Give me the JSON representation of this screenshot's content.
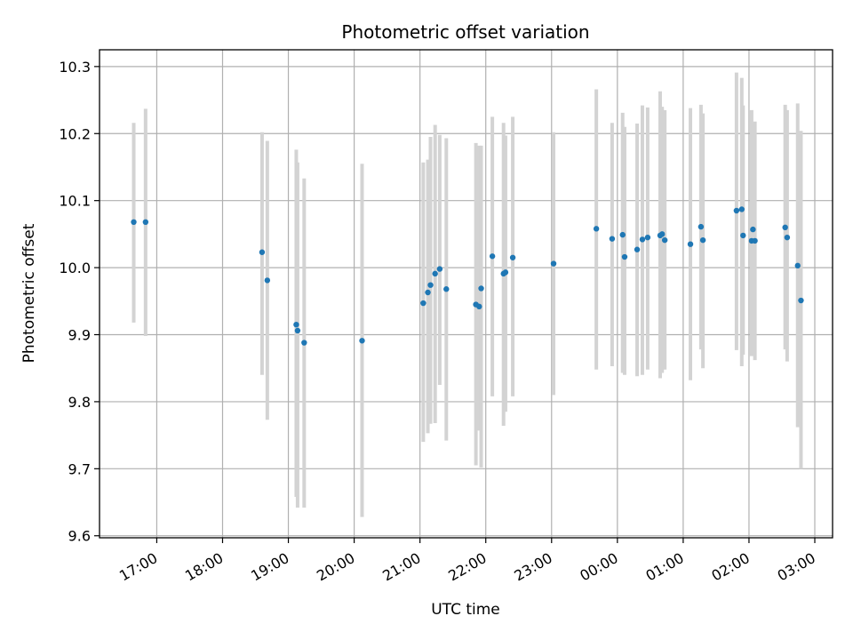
{
  "chart_data": {
    "type": "scatter",
    "title": "Photometric offset variation",
    "xlabel": "UTC time",
    "ylabel": "Photometric offset",
    "x_tick_labels": [
      "17:00",
      "18:00",
      "19:00",
      "20:00",
      "21:00",
      "22:00",
      "23:00",
      "00:00",
      "01:00",
      "02:00",
      "03:00"
    ],
    "x_tick_hours": [
      17,
      18,
      19,
      20,
      21,
      22,
      23,
      24,
      25,
      26,
      27
    ],
    "xlim_hours": [
      16.13,
      27.27
    ],
    "y_tick_labels": [
      "9.6",
      "9.7",
      "9.8",
      "9.9",
      "10.0",
      "10.1",
      "10.2",
      "10.3"
    ],
    "y_ticks": [
      9.6,
      9.7,
      9.8,
      9.9,
      10.0,
      10.1,
      10.2,
      10.3
    ],
    "ylim": [
      9.597,
      10.325
    ],
    "grid": true,
    "point_color": "#1f77b4",
    "errorbar_color": "#d3d3d3",
    "series": [
      {
        "x_hours": [
          16.65,
          16.83,
          18.6,
          18.68,
          19.12,
          19.14,
          19.24,
          20.12,
          21.05,
          21.12,
          21.16,
          21.23,
          21.3,
          21.4,
          21.85,
          21.9,
          21.93,
          22.1,
          22.27,
          22.3,
          22.41,
          23.03,
          23.68,
          23.92,
          24.08,
          24.11,
          24.3,
          24.38,
          24.46,
          24.65,
          24.68,
          24.72,
          25.11,
          25.27,
          25.3,
          25.81,
          25.89,
          25.91,
          26.04,
          26.06,
          26.09,
          26.55,
          26.58,
          26.74,
          26.79
        ],
        "y": [
          10.068,
          10.068,
          10.023,
          9.981,
          9.915,
          9.906,
          9.888,
          9.891,
          9.947,
          9.963,
          9.974,
          9.991,
          9.998,
          9.968,
          9.945,
          9.942,
          9.969,
          10.017,
          9.991,
          9.993,
          10.015,
          10.006,
          10.058,
          10.043,
          10.049,
          10.016,
          10.027,
          10.042,
          10.045,
          10.048,
          10.05,
          10.041,
          10.035,
          10.061,
          10.041,
          10.085,
          10.087,
          10.048,
          10.04,
          10.057,
          10.04,
          10.06,
          10.045,
          10.003,
          9.951
        ],
        "y_err_low": [
          9.918,
          9.898,
          9.84,
          9.773,
          9.658,
          9.642,
          9.642,
          9.628,
          9.74,
          9.753,
          9.767,
          9.768,
          9.825,
          9.742,
          9.705,
          9.757,
          9.702,
          9.808,
          9.764,
          9.785,
          9.808,
          9.81,
          9.848,
          9.853,
          9.843,
          9.84,
          9.838,
          9.84,
          9.848,
          9.835,
          9.843,
          9.848,
          9.832,
          9.878,
          9.85,
          9.877,
          9.853,
          9.87,
          9.868,
          9.87,
          9.862,
          9.878,
          9.86,
          9.762,
          9.7
        ],
        "y_err_high": [
          10.216,
          10.237,
          10.202,
          10.189,
          10.176,
          10.157,
          10.133,
          10.155,
          10.157,
          10.161,
          10.195,
          10.213,
          10.198,
          10.193,
          10.186,
          10.182,
          10.182,
          10.225,
          10.216,
          10.197,
          10.225,
          10.202,
          10.266,
          10.216,
          10.231,
          10.21,
          10.215,
          10.242,
          10.239,
          10.263,
          10.24,
          10.235,
          10.238,
          10.243,
          10.23,
          10.291,
          10.283,
          10.242,
          10.235,
          10.217,
          10.218,
          10.243,
          10.235,
          10.245,
          10.204
        ]
      }
    ]
  }
}
